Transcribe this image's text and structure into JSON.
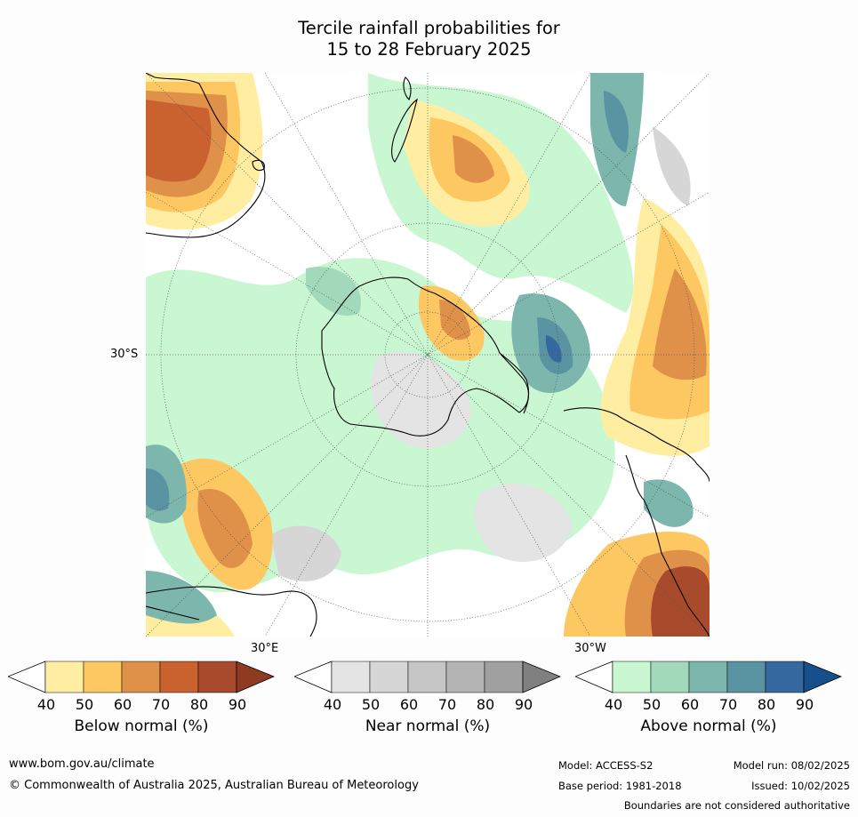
{
  "title": {
    "line1": "Tercile rainfall probabilities for",
    "line2": "15 to 28 February 2025"
  },
  "map": {
    "lat_label": "30°S",
    "lon_label_east": "30°E",
    "lon_label_west": "30°W",
    "colors": {
      "ocean_base": "#ffffff",
      "gridline": "#555555",
      "coastline": "#000000"
    }
  },
  "colorbars": [
    {
      "label": "Below normal (%)",
      "ticks": [
        "40",
        "50",
        "60",
        "70",
        "80",
        "90"
      ],
      "colors": [
        "#ffffff",
        "#ffeea1",
        "#fdc862",
        "#e09149",
        "#c9622f",
        "#a84a2c",
        "#8f3b22"
      ]
    },
    {
      "label": "Near normal (%)",
      "ticks": [
        "40",
        "50",
        "60",
        "70",
        "80",
        "90"
      ],
      "colors": [
        "#ffffff",
        "#e4e4e4",
        "#d6d6d6",
        "#c6c6c6",
        "#b4b4b4",
        "#a0a0a0",
        "#808080"
      ]
    },
    {
      "label": "Above normal (%)",
      "ticks": [
        "40",
        "50",
        "60",
        "70",
        "80",
        "90"
      ],
      "colors": [
        "#ffffff",
        "#c9f7d1",
        "#a3d9bb",
        "#7cb6ad",
        "#5a93a1",
        "#34689e",
        "#174f8a"
      ]
    }
  ],
  "footer": {
    "website": "www.bom.gov.au/climate",
    "copyright": "© Commonwealth of Australia 2025, Australian Bureau of Meteorology",
    "model": "Model: ACCESS-S2",
    "base_period": "Base period: 1981-2018",
    "model_run": "Model run: 08/02/2025",
    "issued": "Issued: 10/02/2025",
    "disclaimer": "Boundaries are not considered authoritative"
  }
}
